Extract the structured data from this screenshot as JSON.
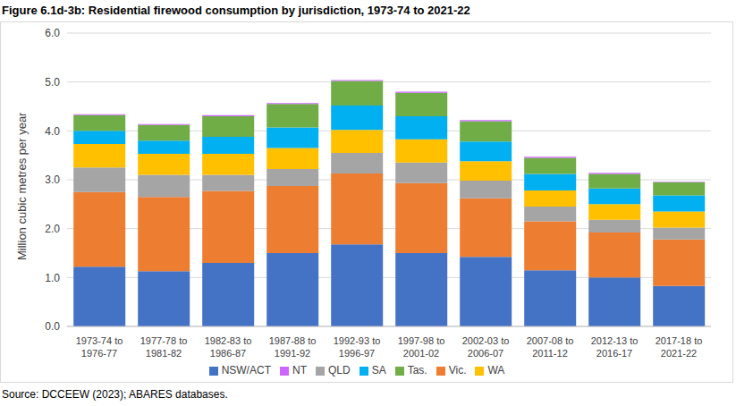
{
  "chart_data": {
    "type": "bar",
    "title": "Figure 6.1d-3b: Residential firewood consumption by jurisdiction, 1973-74 to 2021-22",
    "source": "Source: DCCEEW (2023); ABARES databases.",
    "y_label": "Million cubic metres per year",
    "stacked": true,
    "grid": true,
    "legend": "bottom",
    "categories": [
      "1973-74 to 1976-77",
      "1977-78 to 1981-82",
      "1982-83 to 1986-87",
      "1987-88 to 1991-92",
      "1992-93 to 1996-97",
      "1997-98 to 2001-02",
      "2002-03 to 2006-07",
      "2007-08 to 2011-12",
      "2012-13 to 2016-17",
      "2017-18 to 2021-22"
    ],
    "series": [
      {
        "name": "NSW/ACT",
        "color": "#4472C4",
        "values": [
          1.22,
          1.13,
          1.3,
          1.5,
          1.68,
          1.5,
          1.42,
          1.15,
          1.0,
          0.83
        ]
      },
      {
        "name": "Vic.",
        "color": "#ED7D31",
        "values": [
          1.53,
          1.52,
          1.47,
          1.37,
          1.45,
          1.43,
          1.2,
          1.0,
          0.92,
          0.95
        ]
      },
      {
        "name": "QLD",
        "color": "#A5A5A5",
        "values": [
          0.5,
          0.45,
          0.33,
          0.35,
          0.42,
          0.42,
          0.36,
          0.3,
          0.26,
          0.24
        ]
      },
      {
        "name": "WA",
        "color": "#FFC000",
        "values": [
          0.48,
          0.43,
          0.43,
          0.43,
          0.47,
          0.48,
          0.4,
          0.33,
          0.32,
          0.33
        ]
      },
      {
        "name": "SA",
        "color": "#00B0F0",
        "values": [
          0.27,
          0.27,
          0.35,
          0.42,
          0.5,
          0.47,
          0.4,
          0.34,
          0.32,
          0.33
        ]
      },
      {
        "name": "Tas.",
        "color": "#70AD47",
        "values": [
          0.32,
          0.32,
          0.42,
          0.48,
          0.5,
          0.48,
          0.42,
          0.33,
          0.3,
          0.27
        ]
      },
      {
        "name": "NT",
        "color": "#CC66FF",
        "values": [
          0.02,
          0.02,
          0.02,
          0.02,
          0.02,
          0.02,
          0.02,
          0.02,
          0.02,
          0.01
        ]
      }
    ],
    "ylim": [
      0,
      6
    ],
    "yticks": [
      {
        "value": 0,
        "label": "0.0"
      },
      {
        "value": 1,
        "label": "1.0"
      },
      {
        "value": 2,
        "label": "2.0"
      },
      {
        "value": 3,
        "label": "3.0"
      },
      {
        "value": 4,
        "label": "4.0"
      },
      {
        "value": 5,
        "label": "5.0"
      },
      {
        "value": 6,
        "label": "6.0"
      }
    ]
  }
}
